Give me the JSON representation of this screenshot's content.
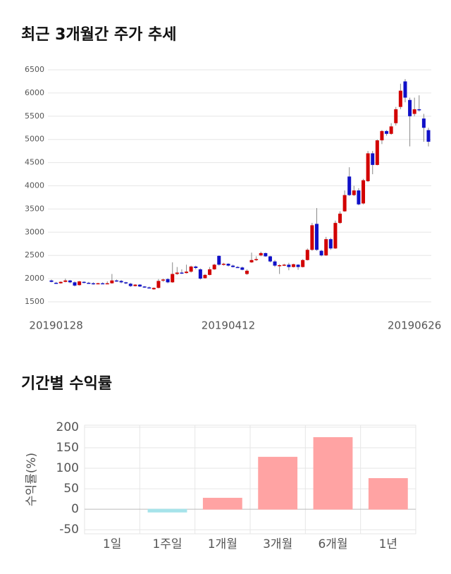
{
  "chart_data": [
    {
      "type": "candlestick",
      "title": "최근 3개월간 주가 추세",
      "categories": [
        null,
        "20190128",
        null,
        null,
        null,
        null,
        null,
        null,
        null,
        null,
        null,
        null,
        null,
        null,
        null,
        null,
        null,
        null,
        null,
        null,
        null,
        null,
        null,
        null,
        null,
        null,
        null,
        null,
        null,
        null,
        null,
        null,
        null,
        null,
        null,
        null,
        null,
        null,
        "20190412",
        null,
        null,
        null,
        null,
        null,
        null,
        null,
        null,
        null,
        null,
        null,
        null,
        null,
        null,
        null,
        null,
        null,
        null,
        null,
        null,
        null,
        null,
        null,
        null,
        null,
        null,
        null,
        null,
        null,
        null,
        null,
        null,
        null,
        null,
        null,
        null,
        null,
        null,
        null,
        "20190626",
        null,
        null,
        null
      ],
      "open": [
        1960,
        1910,
        1900,
        1930,
        1960,
        1920,
        1860,
        1930,
        1910,
        1900,
        1890,
        1900,
        1890,
        1900,
        1960,
        1950,
        1920,
        1890,
        1840,
        1870,
        1830,
        1810,
        1770,
        1800,
        1960,
        1990,
        1920,
        2100,
        2130,
        2120,
        2150,
        2260,
        2200,
        2010,
        2080,
        2200,
        2490,
        2300,
        2320,
        2280,
        2250,
        2240,
        2100,
        2350,
        2400,
        2500,
        2550,
        2480,
        2370,
        2280,
        2290,
        2300,
        2250,
        2300,
        2250,
        2400,
        2620,
        3180,
        2600,
        2500,
        2850,
        2650,
        3200,
        3450,
        4200,
        3800,
        3900,
        3620,
        4100,
        4700,
        4450,
        4980,
        5180,
        5120,
        5350,
        5700,
        6250,
        5850,
        5550,
        5650,
        5450,
        5200
      ],
      "high": [
        1980,
        1930,
        1940,
        2000,
        1970,
        1940,
        1950,
        1940,
        1930,
        1920,
        1910,
        1920,
        1940,
        2100,
        1980,
        1970,
        1930,
        1910,
        1880,
        1880,
        1840,
        1830,
        1810,
        1990,
        2000,
        2010,
        2350,
        2250,
        2200,
        2300,
        2280,
        2280,
        2220,
        2100,
        2250,
        2320,
        2500,
        2340,
        2330,
        2300,
        2270,
        2260,
        2200,
        2560,
        2480,
        2580,
        2560,
        2490,
        2400,
        2310,
        2320,
        2340,
        2320,
        2310,
        2420,
        2650,
        3200,
        3520,
        2620,
        2900,
        2880,
        3250,
        3450,
        3900,
        4400,
        4000,
        3950,
        4150,
        4750,
        4750,
        5000,
        5200,
        5200,
        5350,
        5700,
        6200,
        6300,
        5900,
        5900,
        5950,
        5550,
        5250
      ],
      "low": [
        1920,
        1890,
        1890,
        1920,
        1900,
        1830,
        1850,
        1900,
        1890,
        1870,
        1880,
        1880,
        1880,
        1890,
        1930,
        1900,
        1880,
        1820,
        1830,
        1820,
        1800,
        1790,
        1760,
        1790,
        1930,
        1900,
        1910,
        2080,
        2100,
        2110,
        2130,
        2200,
        1980,
        2000,
        2070,
        2190,
        2280,
        2280,
        2260,
        2240,
        2230,
        2180,
        2080,
        2340,
        2380,
        2480,
        2470,
        2350,
        2250,
        2100,
        2270,
        2180,
        2240,
        2190,
        2240,
        2390,
        2600,
        2600,
        2480,
        2490,
        2620,
        2640,
        3180,
        3440,
        3780,
        3780,
        3580,
        3600,
        4080,
        4250,
        4440,
        4900,
        5080,
        5100,
        5300,
        5650,
        5800,
        4850,
        5500,
        5600,
        4950,
        4850
      ],
      "close": [
        1930,
        1900,
        1930,
        1960,
        1920,
        1850,
        1940,
        1910,
        1900,
        1890,
        1900,
        1890,
        1900,
        1960,
        1950,
        1920,
        1900,
        1840,
        1870,
        1830,
        1810,
        1800,
        1800,
        1950,
        1980,
        1920,
        2100,
        2130,
        2120,
        2150,
        2260,
        2230,
        2000,
        2080,
        2200,
        2300,
        2300,
        2320,
        2280,
        2250,
        2240,
        2190,
        2170,
        2400,
        2420,
        2550,
        2480,
        2370,
        2280,
        2290,
        2300,
        2250,
        2310,
        2250,
        2400,
        2620,
        3150,
        2620,
        2500,
        2850,
        2650,
        3200,
        3400,
        3800,
        3800,
        3900,
        3600,
        4120,
        4700,
        4450,
        4980,
        5180,
        5120,
        5280,
        5650,
        6050,
        5900,
        5500,
        5650,
        5640,
        5250,
        4950
      ],
      "up_color": "#d20000",
      "down_color": "#1010c8",
      "ylim": [
        1500,
        6500
      ],
      "yticks": [
        1500,
        2000,
        2500,
        3000,
        3500,
        4000,
        4500,
        5000,
        5500,
        6000,
        6500
      ],
      "grid": true
    },
    {
      "type": "bar",
      "title": "기간별 수익률",
      "y_label": "수익률(%)",
      "categories": [
        "1일",
        "1주일",
        "1개월",
        "3개월",
        "6개월",
        "1년"
      ],
      "values": [
        0,
        -7,
        27,
        127,
        175,
        75
      ],
      "colors": [
        "#ffa3a3",
        "#a6e3ea",
        "#ffa3a3",
        "#ffa3a3",
        "#ffa3a3",
        "#ffa3a3"
      ],
      "ylim": [
        -60,
        205
      ],
      "yticks": [
        -50,
        0,
        50,
        100,
        150,
        200
      ],
      "grid": true
    }
  ]
}
